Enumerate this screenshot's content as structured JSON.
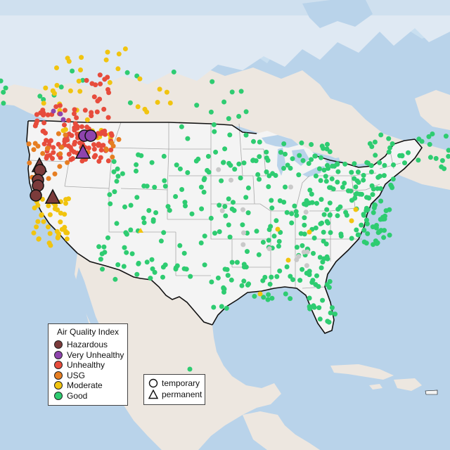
{
  "map": {
    "region": "United States and surrounding North America",
    "colors": {
      "ocean": "#b9d3ea",
      "land": "#ede7e0",
      "land_tint": "#e6d8c8",
      "forest_tint": "#cfe0cc",
      "us_land": "#f4f4f4",
      "border": "#111111",
      "state_line": "#a9a9a9"
    }
  },
  "aqi_legend": {
    "title": "Air Quality Index",
    "items": [
      {
        "label": "Hazardous",
        "color": "#7b3b3b"
      },
      {
        "label": "Very Unhealthy",
        "color": "#8e44ad"
      },
      {
        "label": "Unhealthy",
        "color": "#e74c3c"
      },
      {
        "label": "USG",
        "color": "#e67e22"
      },
      {
        "label": "Moderate",
        "color": "#f1c40f"
      },
      {
        "label": "Good",
        "color": "#2ecc71"
      }
    ]
  },
  "type_legend": {
    "items": [
      {
        "label": "temporary",
        "shape": "circle"
      },
      {
        "label": "permanent",
        "shape": "triangle"
      }
    ]
  },
  "highlighted_monitors": [
    {
      "category": "Very Unhealthy",
      "type": "temporary"
    },
    {
      "category": "Very Unhealthy",
      "type": "temporary"
    },
    {
      "category": "Very Unhealthy",
      "type": "permanent"
    },
    {
      "category": "Hazardous",
      "type": "permanent"
    },
    {
      "category": "Hazardous",
      "type": "temporary"
    },
    {
      "category": "Hazardous",
      "type": "temporary"
    },
    {
      "category": "Hazardous",
      "type": "temporary"
    },
    {
      "category": "Hazardous",
      "type": "temporary"
    },
    {
      "category": "Hazardous",
      "type": "permanent"
    }
  ]
}
